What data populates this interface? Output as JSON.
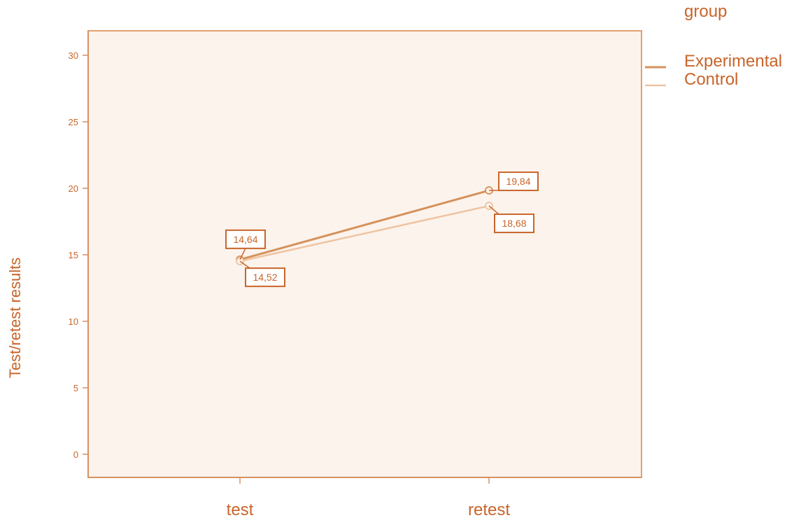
{
  "chart_data": {
    "type": "line",
    "title": "",
    "xlabel": "",
    "ylabel": "Test/retest results",
    "categories": [
      "test",
      "retest"
    ],
    "ylim": [
      0,
      30
    ],
    "yticks": [
      0,
      5,
      10,
      15,
      20,
      25,
      30
    ],
    "grid": false,
    "legend": {
      "title": "group",
      "placement": "top-right"
    },
    "series": [
      {
        "name": "Experimental",
        "values": [
          14.64,
          19.84
        ],
        "labels": [
          "14,64",
          "19,84"
        ],
        "color": "#d5925c"
      },
      {
        "name": "Control",
        "values": [
          14.52,
          18.68
        ],
        "labels": [
          "14,52",
          "18,68"
        ],
        "color": "#efc4a2"
      }
    ]
  },
  "colors": {
    "text": "#c8652a",
    "axis": "#d89060",
    "plot_background": "#fcf3ec",
    "plot_border": "#e2a070"
  }
}
